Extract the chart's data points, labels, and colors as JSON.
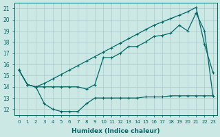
{
  "xlabel": "Humidex (Indice chaleur)",
  "bg_color": "#cce8e4",
  "line_color": "#006666",
  "grid_color": "#aacccc",
  "xlim": [
    -0.5,
    23.5
  ],
  "ylim": [
    11.5,
    21.5
  ],
  "yticks": [
    12,
    13,
    14,
    15,
    16,
    17,
    18,
    19,
    20,
    21
  ],
  "xticks": [
    0,
    1,
    2,
    3,
    4,
    5,
    6,
    7,
    8,
    9,
    10,
    11,
    12,
    13,
    14,
    15,
    16,
    17,
    18,
    19,
    20,
    21,
    22,
    23
  ],
  "series": [
    {
      "x": [
        0,
        1,
        2,
        3,
        4,
        5,
        6,
        7,
        8,
        9,
        10,
        11,
        12,
        13,
        14,
        15,
        16,
        17,
        18,
        19,
        20,
        21,
        22,
        23
      ],
      "y": [
        15.5,
        14.2,
        14.0,
        14.3,
        14.7,
        15.1,
        15.5,
        15.9,
        16.3,
        16.7,
        17.1,
        17.5,
        17.9,
        18.3,
        18.7,
        19.1,
        19.5,
        19.8,
        20.1,
        20.4,
        20.7,
        21.1,
        17.8,
        15.3
      ],
      "marker": true
    },
    {
      "x": [
        0,
        1,
        2,
        3,
        4,
        5,
        6,
        7,
        8,
        9,
        10,
        11,
        12,
        13,
        14,
        15,
        16,
        17,
        18,
        19,
        20,
        21,
        22,
        23
      ],
      "y": [
        15.5,
        14.2,
        14.0,
        14.0,
        14.0,
        14.0,
        14.0,
        14.0,
        13.8,
        14.2,
        16.6,
        16.6,
        17.0,
        17.6,
        17.6,
        18.0,
        18.5,
        18.6,
        18.8,
        19.5,
        19.0,
        20.6,
        19.0,
        13.2
      ],
      "marker": true
    },
    {
      "x": [
        0,
        1,
        2,
        3,
        4,
        5,
        6,
        7,
        8,
        9,
        10,
        11,
        12,
        13,
        14,
        15,
        16,
        17,
        18,
        19,
        20,
        21,
        22,
        23
      ],
      "y": [
        15.5,
        14.2,
        14.0,
        12.5,
        12.0,
        11.8,
        11.8,
        11.8,
        12.5,
        13.0,
        13.0,
        13.0,
        13.0,
        13.0,
        13.0,
        13.1,
        13.1,
        13.1,
        13.2,
        13.2,
        13.2,
        13.2,
        13.2,
        13.2
      ],
      "marker": true
    }
  ]
}
